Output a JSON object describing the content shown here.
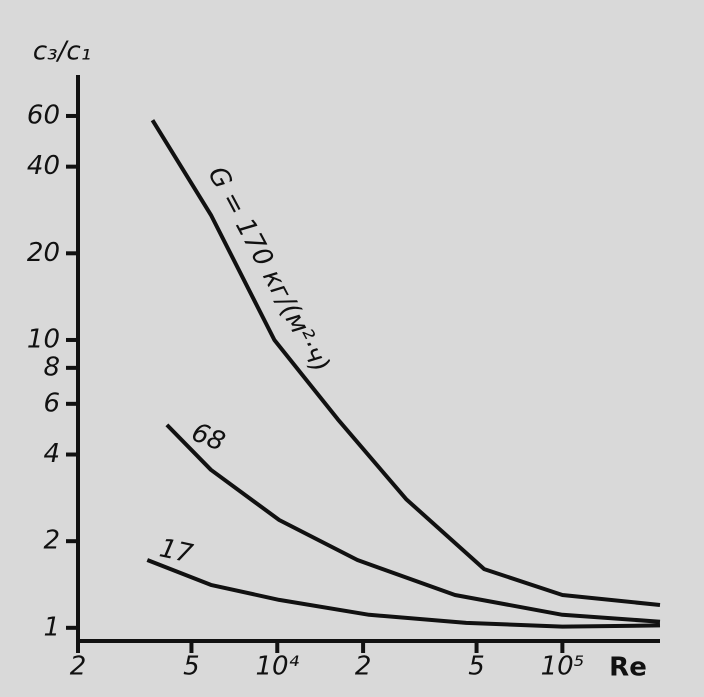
{
  "chart_data": {
    "type": "line",
    "ylabel": "c₃/c₁",
    "xlabel": "Re",
    "xscale": "log",
    "yscale": "log",
    "color": "#111111",
    "xlim": [
      2000,
      220000
    ],
    "ylim": [
      0.9,
      80
    ],
    "xticks": [
      {
        "value": 2000,
        "label": "2"
      },
      {
        "value": 5000,
        "label": "5"
      },
      {
        "value": 10000,
        "label": "10⁴"
      },
      {
        "value": 20000,
        "label": "2"
      },
      {
        "value": 50000,
        "label": "5"
      },
      {
        "value": 100000,
        "label": "10⁵"
      }
    ],
    "yticks": [
      1,
      2,
      4,
      6,
      8,
      10,
      20,
      40,
      60
    ],
    "series": [
      {
        "name": "G = 170 кг/(м²·ч)",
        "color": "#111111",
        "x": [
          3650,
          5850,
          9770,
          16300,
          28300,
          53200,
          100000,
          220000
        ],
        "values": [
          58,
          27.2,
          10,
          5.3,
          2.8,
          1.6,
          1.3,
          1.2
        ]
      },
      {
        "name": "68",
        "color": "#111111",
        "x": [
          4100,
          5850,
          10160,
          19100,
          42000,
          100000,
          220000
        ],
        "values": [
          5.07,
          3.54,
          2.37,
          1.72,
          1.3,
          1.11,
          1.05
        ]
      },
      {
        "name": "17",
        "color": "#111111",
        "x": [
          3500,
          5850,
          10160,
          21000,
          46000,
          100000,
          220000
        ],
        "values": [
          1.72,
          1.41,
          1.25,
          1.11,
          1.04,
          1.01,
          1.02
        ]
      }
    ]
  }
}
